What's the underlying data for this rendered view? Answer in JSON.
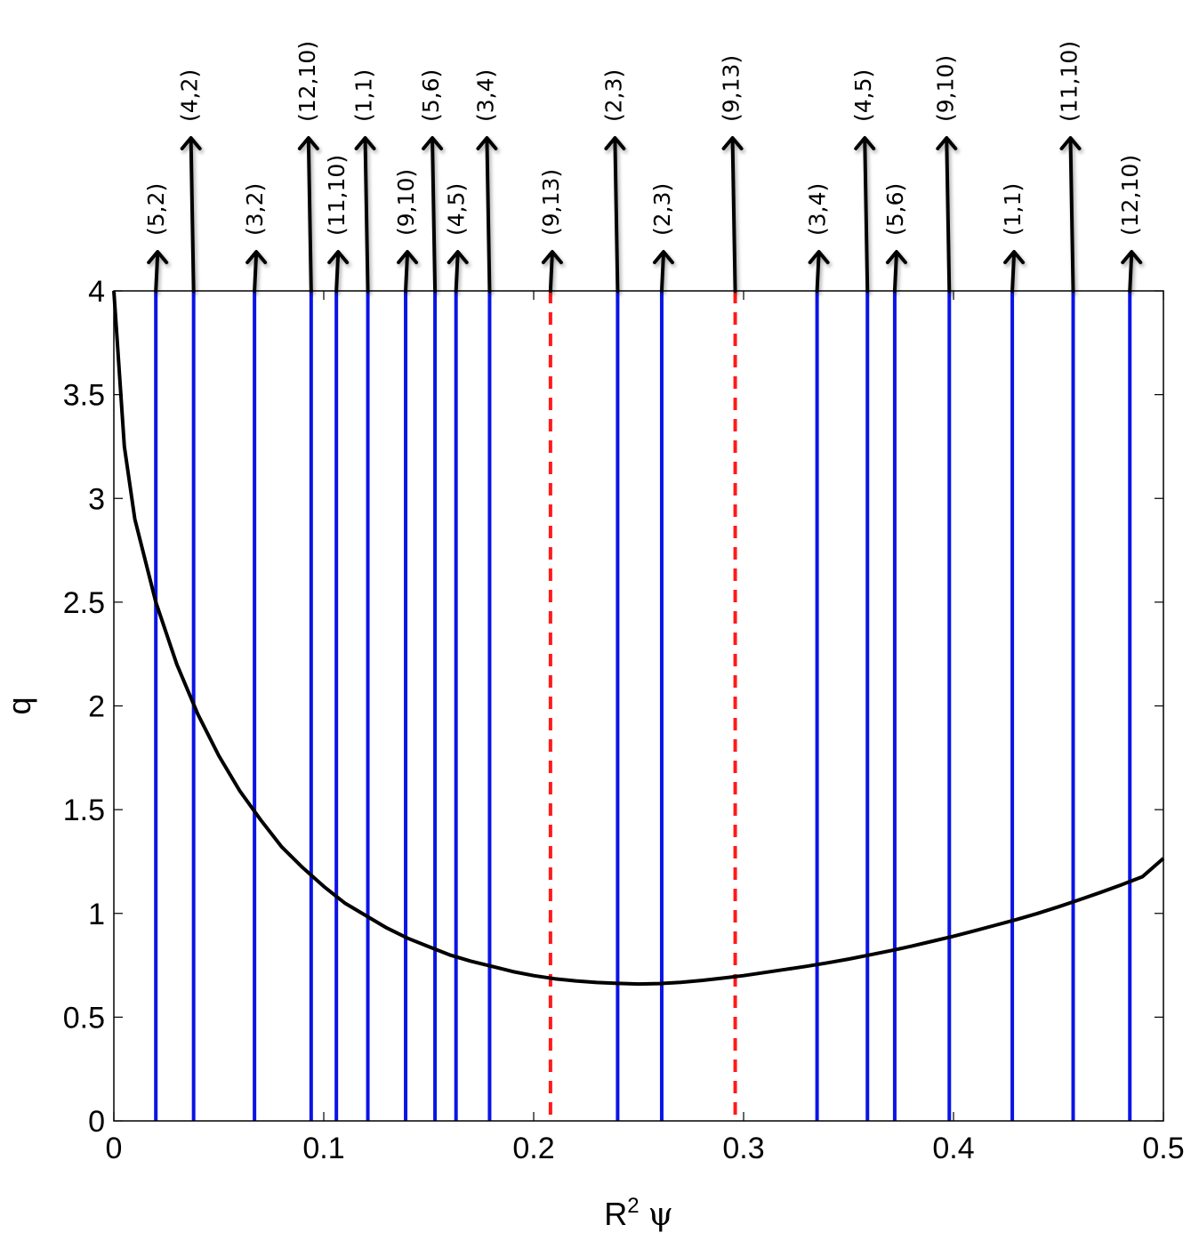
{
  "chart_data": {
    "type": "line",
    "xlabel": "R",
    "xlabel_sup": "2",
    "xlabel_symbol": "ψ",
    "ylabel": "q",
    "xlim": [
      0,
      0.5
    ],
    "ylim": [
      0,
      4
    ],
    "grid": false,
    "x_ticks": [
      "0",
      "0.1",
      "0.2",
      "0.3",
      "0.4",
      "0.5"
    ],
    "y_ticks": [
      "0",
      "0.5",
      "1",
      "1.5",
      "2",
      "2.5",
      "3",
      "3.5",
      "4"
    ],
    "curve": {
      "color": "#000000",
      "x": [
        0.0,
        0.005,
        0.01,
        0.02,
        0.03,
        0.04,
        0.05,
        0.06,
        0.07,
        0.08,
        0.09,
        0.1,
        0.11,
        0.12,
        0.13,
        0.14,
        0.15,
        0.16,
        0.17,
        0.18,
        0.19,
        0.2,
        0.21,
        0.22,
        0.23,
        0.24,
        0.25,
        0.26,
        0.27,
        0.28,
        0.29,
        0.3,
        0.31,
        0.32,
        0.33,
        0.34,
        0.35,
        0.36,
        0.37,
        0.38,
        0.39,
        0.4,
        0.41,
        0.42,
        0.43,
        0.44,
        0.45,
        0.46,
        0.47,
        0.48,
        0.49,
        0.5
      ],
      "y": [
        4.0,
        3.25,
        2.9,
        2.5,
        2.2,
        1.96,
        1.76,
        1.59,
        1.45,
        1.32,
        1.22,
        1.13,
        1.05,
        0.99,
        0.93,
        0.88,
        0.84,
        0.8,
        0.77,
        0.745,
        0.72,
        0.7,
        0.685,
        0.675,
        0.667,
        0.663,
        0.66,
        0.662,
        0.668,
        0.677,
        0.688,
        0.7,
        0.715,
        0.73,
        0.745,
        0.762,
        0.78,
        0.8,
        0.82,
        0.842,
        0.866,
        0.89,
        0.916,
        0.943,
        0.97,
        1.0,
        1.032,
        1.066,
        1.101,
        1.138,
        1.177,
        1.265
      ]
    },
    "resonances": [
      {
        "label": "(5,2)",
        "x": 0.02,
        "style": "solid",
        "row": "low"
      },
      {
        "label": "(4,2)",
        "x": 0.038,
        "style": "solid",
        "row": "high"
      },
      {
        "label": "(3,2)",
        "x": 0.067,
        "style": "solid",
        "row": "low"
      },
      {
        "label": "(12,10)",
        "x": 0.094,
        "style": "solid",
        "row": "high"
      },
      {
        "label": "(11,10)",
        "x": 0.106,
        "style": "solid",
        "row": "low"
      },
      {
        "label": "(1,1)",
        "x": 0.121,
        "style": "solid",
        "row": "high"
      },
      {
        "label": "(9,10)",
        "x": 0.139,
        "style": "solid",
        "row": "low"
      },
      {
        "label": "(5,6)",
        "x": 0.153,
        "style": "solid",
        "row": "high"
      },
      {
        "label": "(4,5)",
        "x": 0.163,
        "style": "solid",
        "row": "low"
      },
      {
        "label": "(3,4)",
        "x": 0.179,
        "style": "solid",
        "row": "high"
      },
      {
        "label": "(9,13)",
        "x": 0.208,
        "style": "dashed",
        "row": "low"
      },
      {
        "label": "(2,3)",
        "x": 0.24,
        "style": "solid",
        "row": "high"
      },
      {
        "label": "(2,3)",
        "x": 0.261,
        "style": "solid",
        "row": "low"
      },
      {
        "label": "(9,13)",
        "x": 0.296,
        "style": "dashed",
        "row": "high"
      },
      {
        "label": "(3,4)",
        "x": 0.335,
        "style": "solid",
        "row": "low"
      },
      {
        "label": "(4,5)",
        "x": 0.359,
        "style": "solid",
        "row": "high"
      },
      {
        "label": "(5,6)",
        "x": 0.372,
        "style": "solid",
        "row": "low"
      },
      {
        "label": "(9,10)",
        "x": 0.398,
        "style": "solid",
        "row": "high"
      },
      {
        "label": "(1,1)",
        "x": 0.428,
        "style": "solid",
        "row": "low"
      },
      {
        "label": "(11,10)",
        "x": 0.457,
        "style": "solid",
        "row": "high"
      },
      {
        "label": "(12,10)",
        "x": 0.484,
        "style": "solid",
        "row": "low"
      }
    ],
    "colors": {
      "solid": "#0a14e6",
      "dashed": "#ff1a1a",
      "curve": "#000000",
      "axes": "#000000"
    }
  }
}
